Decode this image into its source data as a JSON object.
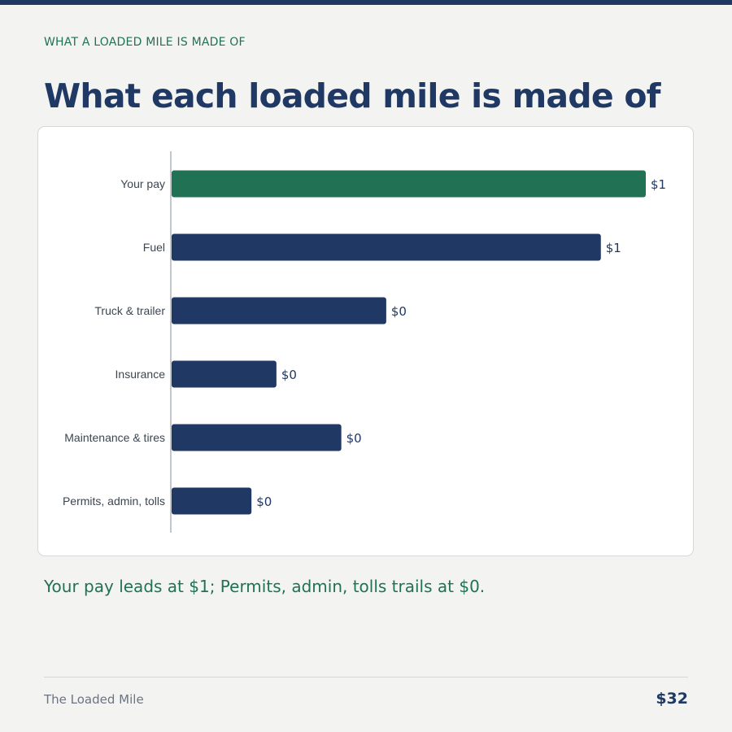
{
  "header": {
    "eyebrow": "WHAT A LOADED MILE IS MADE OF",
    "title": "What each loaded mile is made of"
  },
  "takeaway": "Your pay leads at $1; Permits, admin, tolls trails at $0.",
  "footer": {
    "brand": "The Loaded Mile",
    "value": "$32"
  },
  "colors": {
    "highlight": "#217154",
    "bar": "#1f3864",
    "axis": "#9aa3a8"
  },
  "chart_data": {
    "type": "bar",
    "orientation": "horizontal",
    "grid": false,
    "categories": [
      "Your pay",
      "Fuel",
      "Truck & trailer",
      "Insurance",
      "Maintenance & tires",
      "Permits, admin, tolls"
    ],
    "values": [
      0.95,
      0.86,
      0.43,
      0.21,
      0.34,
      0.16
    ],
    "value_labels": [
      "$1",
      "$1",
      "$0",
      "$0",
      "$0",
      "$0"
    ],
    "highlight_index": 0,
    "xlim": [
      0,
      0.95
    ]
  }
}
